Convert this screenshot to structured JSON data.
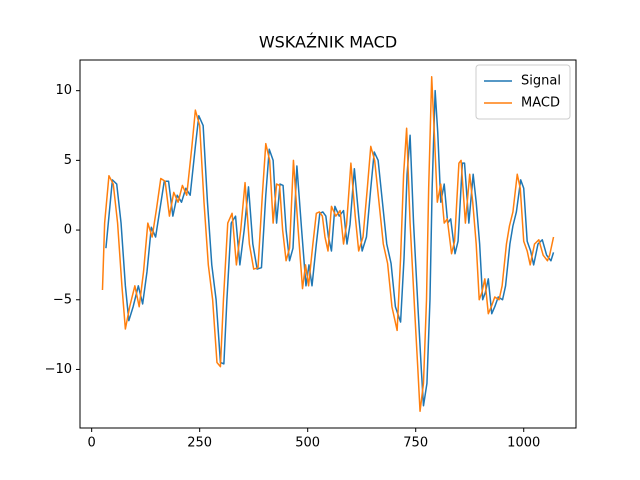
{
  "chart_data": {
    "type": "line",
    "title": "WSKAŹNIK MACD",
    "xlim": [
      -27,
      1121
    ],
    "ylim": [
      -14.2,
      12.2
    ],
    "xticks": [
      0,
      250,
      500,
      750,
      1000
    ],
    "yticks": [
      {
        "value": -10,
        "label": "−10"
      },
      {
        "value": -5,
        "label": "−5"
      },
      0,
      5,
      10
    ],
    "grid": false,
    "legend": "upper right",
    "series": [
      {
        "name": "Signal",
        "color": "#1f77b4",
        "x": [
          33,
          48,
          58,
          68,
          78,
          86,
          96,
          108,
          118,
          128,
          138,
          148,
          158,
          168,
          178,
          188,
          198,
          208,
          218,
          228,
          240,
          248,
          258,
          268,
          278,
          288,
          298,
          306,
          313,
          323,
          333,
          343,
          353,
          363,
          373,
          383,
          393,
          403,
          411,
          420,
          428,
          436,
          443,
          450,
          458,
          466,
          475,
          486,
          496,
          503,
          510,
          520,
          528,
          535,
          542,
          548,
          555,
          563,
          573,
          583,
          591,
          598,
          608,
          618,
          626,
          636,
          646,
          654,
          663,
          673,
          683,
          693,
          703,
          715,
          723,
          730,
          737,
          745,
          756,
          763,
          768,
          776,
          783,
          788,
          795,
          801,
          808,
          816,
          824,
          831,
          841,
          848,
          858,
          863,
          873,
          883,
          890,
          898,
          905,
          911,
          918,
          926,
          933,
          941,
          951,
          958,
          968,
          975,
          983,
          993,
          1000,
          1008,
          1016,
          1023,
          1033,
          1043,
          1053,
          1063,
          1069
        ],
        "values": [
          -1.3,
          3.6,
          3.3,
          0.5,
          -4,
          -6.5,
          -5.5,
          -4,
          -5.3,
          -3,
          0.2,
          -0.5,
          1.5,
          3.5,
          3.5,
          1,
          2.5,
          2,
          3,
          2.5,
          6,
          8.2,
          7.5,
          2,
          -2.5,
          -5,
          -9.5,
          -9.6,
          -5,
          0.5,
          1,
          -2.5,
          0,
          3.1,
          -1,
          -2.8,
          -2.7,
          2.5,
          5.8,
          5,
          0.5,
          3.3,
          3.2,
          0,
          -2.2,
          -1.3,
          4.6,
          0,
          -4,
          -2.5,
          -4,
          -1,
          1.2,
          1.3,
          1,
          -0.5,
          -1.5,
          1.7,
          1,
          1.4,
          -1,
          0.4,
          4.4,
          1,
          -1.5,
          -0.5,
          3,
          5.6,
          5,
          2,
          -1,
          -2.4,
          -5.5,
          -6.6,
          -2,
          4,
          6.8,
          0.5,
          -6,
          -10,
          -12.6,
          -11,
          -5,
          3,
          10,
          7,
          2,
          3.3,
          0.5,
          0.8,
          -1.7,
          -0.8,
          4.8,
          4.8,
          0.5,
          4,
          2,
          -1,
          -5,
          -4.5,
          -3.5,
          -6,
          -5.5,
          -4.8,
          -5,
          -4,
          -1,
          0.3,
          1.3,
          3.6,
          3,
          -0.8,
          -1.5,
          -2.5,
          -1,
          -0.7,
          -1.8,
          -2.2,
          -1.6
        ]
      },
      {
        "name": "MACD",
        "color": "#ff7f0e",
        "x": [
          25,
          30,
          40,
          50,
          60,
          70,
          78,
          88,
          100,
          110,
          120,
          130,
          140,
          150,
          160,
          170,
          180,
          190,
          200,
          210,
          220,
          232,
          240,
          250,
          260,
          270,
          280,
          290,
          298,
          305,
          315,
          325,
          335,
          345,
          355,
          365,
          375,
          385,
          395,
          403,
          412,
          420,
          428,
          435,
          442,
          450,
          458,
          467,
          478,
          488,
          495,
          502,
          512,
          520,
          527,
          534,
          540,
          547,
          555,
          565,
          575,
          583,
          590,
          600,
          610,
          618,
          628,
          638,
          646,
          655,
          665,
          675,
          685,
          695,
          707,
          715,
          722,
          729,
          737,
          748,
          755,
          760,
          768,
          775,
          780,
          787,
          793,
          800,
          808,
          816,
          823,
          833,
          840,
          850,
          855,
          865,
          875,
          882,
          890,
          897,
          903,
          910,
          918,
          925,
          933,
          943,
          950,
          960,
          967,
          975,
          985,
          992,
          1000,
          1008,
          1015,
          1025,
          1035,
          1045,
          1055,
          1060,
          1069
        ],
        "values": [
          -4.3,
          0.5,
          3.9,
          3.3,
          0.5,
          -4,
          -7.1,
          -5.5,
          -4,
          -5.5,
          -3,
          0.5,
          -0.5,
          1.5,
          3.7,
          3.5,
          1,
          2.7,
          2,
          3.2,
          2.5,
          6,
          8.6,
          7.5,
          2,
          -2.5,
          -5,
          -9.5,
          -9.8,
          -5,
          0.5,
          1.2,
          -2.5,
          0,
          3.4,
          -1,
          -2.8,
          -2.7,
          2.5,
          6.2,
          5,
          0.5,
          3.3,
          3.2,
          0,
          -2.2,
          -1.3,
          5,
          0,
          -4.2,
          -2.5,
          -4,
          -1,
          1.2,
          1.3,
          1,
          -0.5,
          -1.5,
          1.7,
          1,
          1.4,
          -1,
          0.4,
          4.8,
          1,
          -1.5,
          -0.5,
          3,
          6,
          5,
          2,
          -1,
          -2.4,
          -5.5,
          -7.2,
          -2,
          4,
          7.3,
          0.5,
          -6,
          -10,
          -13,
          -11,
          -5,
          3,
          11,
          7,
          2,
          3.3,
          0.5,
          0.8,
          -1.7,
          -0.8,
          4.8,
          5,
          0.5,
          4,
          2,
          -1,
          -5,
          -4.5,
          -3.5,
          -6,
          -5.5,
          -4.8,
          -5,
          -4,
          -1,
          0.3,
          1.3,
          4,
          3,
          -0.8,
          -1.5,
          -2.5,
          -1,
          -0.7,
          -1.8,
          -2.2,
          -1.8,
          -0.5
        ]
      }
    ]
  }
}
